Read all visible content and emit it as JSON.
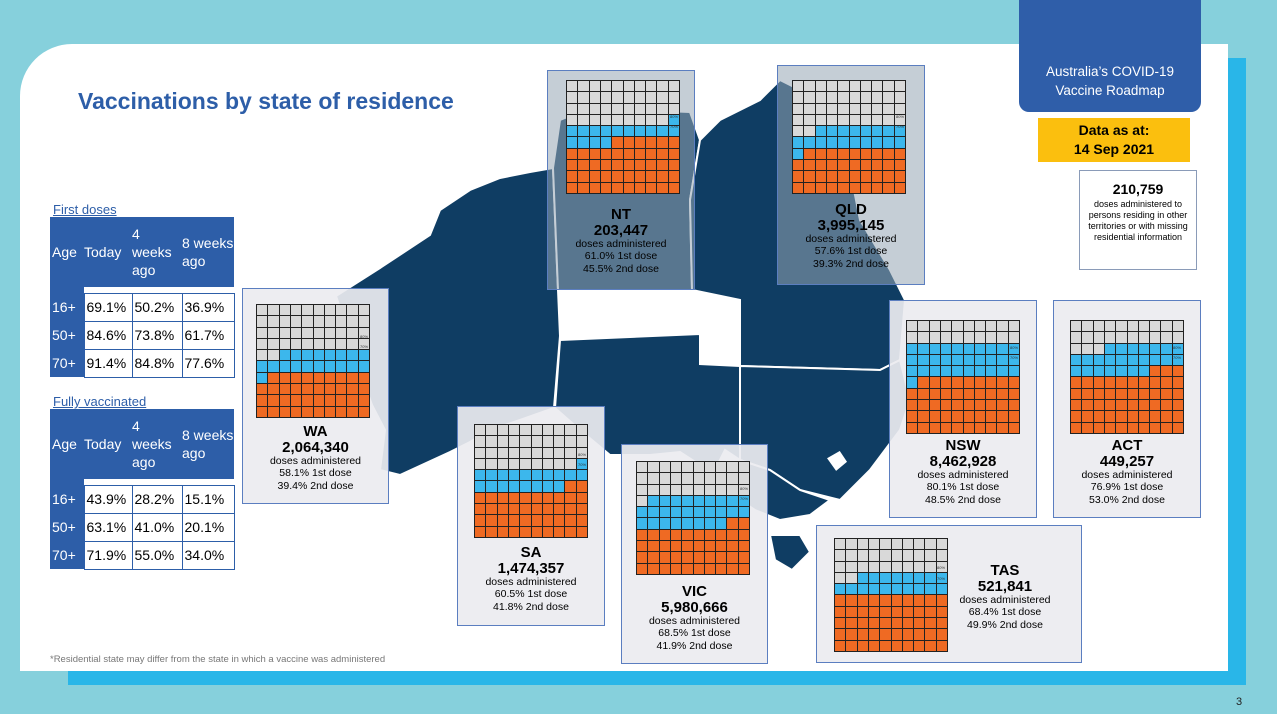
{
  "badge": {
    "line1": "Australia’s COVID-19",
    "line2": "Vaccine Roadmap"
  },
  "data_as_at": {
    "label": "Data as at:",
    "date": "14 Sep 2021"
  },
  "title": "Vaccinations by state of residence",
  "other": {
    "number": "210,759",
    "text": "doses administered to persons residing in other territories or with missing residential information"
  },
  "first_doses": {
    "title": "First doses",
    "headers": [
      "Age",
      "Today",
      "4 weeks ago",
      "8 weeks ago"
    ],
    "rows": [
      {
        "age": "16+",
        "today": "69.1%",
        "w4": "50.2%",
        "w8": "36.9%"
      },
      {
        "age": "50+",
        "today": "84.6%",
        "w4": "73.8%",
        "w8": "61.7%"
      },
      {
        "age": "70+",
        "today": "91.4%",
        "w4": "84.8%",
        "w8": "77.6%"
      }
    ]
  },
  "fully_vaccinated": {
    "title": "Fully vaccinated",
    "headers": [
      "Age",
      "Today",
      "4 weeks ago",
      "8 weeks ago"
    ],
    "rows": [
      {
        "age": "16+",
        "today": "43.9%",
        "w4": "28.2%",
        "w8": "15.1%"
      },
      {
        "age": "50+",
        "today": "63.1%",
        "w4": "41.0%",
        "w8": "20.1%"
      },
      {
        "age": "70+",
        "today": "71.9%",
        "w4": "55.0%",
        "w8": "34.0%"
      }
    ]
  },
  "doses_label": "doses administered",
  "dose1_suffix": "1st dose",
  "dose2_suffix": "2nd dose",
  "marker_80": "80%",
  "marker_70": "70%",
  "states": [
    {
      "code": "NT",
      "doses": "203,447",
      "first": "61.0%",
      "second": "45.5%",
      "first_pct": 0.61,
      "second_pct": 0.455
    },
    {
      "code": "QLD",
      "doses": "3,995,145",
      "first": "57.6%",
      "second": "39.3%",
      "first_pct": 0.576,
      "second_pct": 0.393
    },
    {
      "code": "WA",
      "doses": "2,064,340",
      "first": "58.1%",
      "second": "39.4%",
      "first_pct": 0.581,
      "second_pct": 0.394
    },
    {
      "code": "SA",
      "doses": "1,474,357",
      "first": "60.5%",
      "second": "41.8%",
      "first_pct": 0.605,
      "second_pct": 0.418
    },
    {
      "code": "VIC",
      "doses": "5,980,666",
      "first": "68.5%",
      "second": "41.9%",
      "first_pct": 0.685,
      "second_pct": 0.419
    },
    {
      "code": "NSW",
      "doses": "8,462,928",
      "first": "80.1%",
      "second": "48.5%",
      "first_pct": 0.801,
      "second_pct": 0.485
    },
    {
      "code": "ACT",
      "doses": "449,257",
      "first": "76.9%",
      "second": "53.0%",
      "first_pct": 0.769,
      "second_pct": 0.53
    },
    {
      "code": "TAS",
      "doses": "521,841",
      "first": "68.4%",
      "second": "49.9%",
      "first_pct": 0.684,
      "second_pct": 0.499
    }
  ],
  "colors": {
    "first_dose": "#3cb7ec",
    "second_dose": "#ef6a23",
    "unvaccinated": "#d9d9d9",
    "map": "#0f3d63",
    "brand": "#2d5ea8"
  },
  "footnote": "*Residential state may differ from the state in which a vaccine was administered",
  "page_number": "3"
}
